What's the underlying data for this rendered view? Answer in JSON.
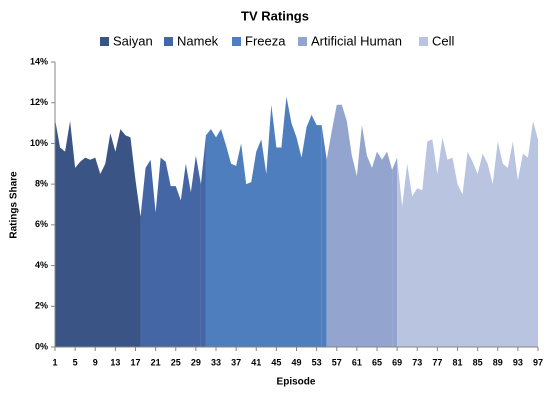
{
  "chart_data": {
    "type": "area",
    "title": "TV Ratings",
    "ylabel": "Ratings Share",
    "xlabel": "Episode",
    "xlim": [
      1,
      97
    ],
    "xticks": [
      1,
      5,
      9,
      13,
      17,
      21,
      25,
      29,
      33,
      37,
      41,
      45,
      49,
      53,
      57,
      61,
      65,
      69,
      73,
      77,
      81,
      85,
      89,
      93,
      97
    ],
    "ylim": [
      0,
      14
    ],
    "yticks": [
      {
        "value": 0,
        "label": "0%"
      },
      {
        "value": 2,
        "label": "2%"
      },
      {
        "value": 4,
        "label": "4%"
      },
      {
        "value": 6,
        "label": "6%"
      },
      {
        "value": 8,
        "label": "8%"
      },
      {
        "value": 10,
        "label": "10%"
      },
      {
        "value": 12,
        "label": "12%"
      },
      {
        "value": 14,
        "label": "14%"
      }
    ],
    "grid": false,
    "legend": "top",
    "series": [
      {
        "name": "Saiyan",
        "color": "#3b5486",
        "x": [
          1,
          2,
          3,
          4,
          5,
          6,
          7,
          8,
          9,
          10,
          11,
          12,
          13,
          14,
          15,
          16,
          17
        ],
        "values": [
          11.2,
          9.8,
          9.6,
          11.1,
          8.8,
          9.1,
          9.3,
          9.2,
          9.3,
          8.5,
          9.0,
          10.5,
          9.6,
          10.7,
          10.4,
          10.3,
          8.2
        ]
      },
      {
        "name": "Namek",
        "color": "#4566a4",
        "x": [
          18,
          19,
          20,
          21,
          22,
          23,
          24,
          25,
          26,
          27,
          28,
          29,
          30
        ],
        "values": [
          6.4,
          8.8,
          9.2,
          6.6,
          9.3,
          9.1,
          7.9,
          7.9,
          7.2,
          9.0,
          7.6,
          9.4,
          8.0
        ]
      },
      {
        "name": "Freeza",
        "color": "#4f7ebe",
        "x": [
          31,
          32,
          33,
          34,
          35,
          36,
          37,
          38,
          39,
          40,
          41,
          42,
          43,
          44,
          45,
          46,
          47,
          48,
          49,
          50,
          51,
          52,
          53,
          54
        ],
        "values": [
          10.4,
          10.7,
          10.3,
          10.7,
          9.9,
          9.0,
          8.9,
          10.0,
          8.0,
          8.1,
          9.6,
          10.2,
          8.5,
          11.9,
          9.8,
          9.8,
          12.3,
          11.0,
          10.3,
          9.3,
          10.8,
          11.4,
          10.9,
          10.9
        ]
      },
      {
        "name": "Artificial Human",
        "color": "#93a5cf",
        "x": [
          55,
          56,
          57,
          58,
          59,
          60,
          61,
          62,
          63,
          64,
          65,
          66,
          67,
          68
        ],
        "values": [
          9.2,
          10.6,
          11.9,
          11.9,
          11.1,
          9.4,
          8.4,
          10.9,
          9.4,
          8.8,
          9.6,
          9.2,
          9.6,
          8.7
        ]
      },
      {
        "name": "Cell",
        "color": "#b9c5e0",
        "x": [
          69,
          70,
          71,
          72,
          73,
          74,
          75,
          76,
          77,
          78,
          79,
          80,
          81,
          82,
          83,
          84,
          85,
          86,
          87,
          88,
          89,
          90,
          91,
          92,
          93,
          94,
          95,
          96,
          97
        ],
        "values": [
          9.3,
          6.9,
          9.0,
          7.4,
          7.8,
          7.7,
          10.1,
          10.2,
          8.5,
          10.3,
          9.2,
          9.3,
          8.0,
          7.5,
          9.6,
          9.1,
          8.5,
          9.5,
          9.0,
          8.0,
          10.1,
          9.0,
          8.8,
          10.1,
          8.2,
          9.5,
          9.3,
          11.1,
          10.2
        ]
      }
    ]
  }
}
